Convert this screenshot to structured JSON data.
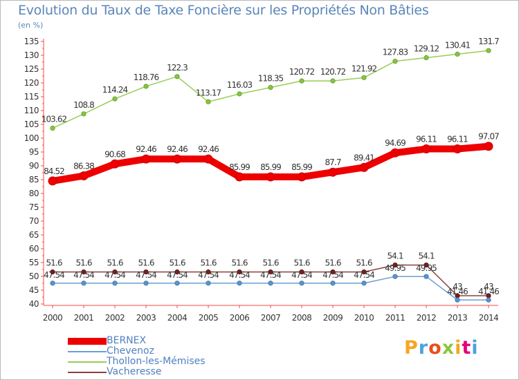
{
  "chart_data": {
    "type": "line",
    "title": "Evolution du Taux de Taxe Foncière sur les Propriétés Non Bâties",
    "subtitle": "(en %)",
    "x": [
      "2000",
      "2001",
      "2002",
      "2003",
      "2004",
      "2005",
      "2006",
      "2007",
      "2008",
      "2009",
      "2010",
      "2011",
      "2012",
      "2013",
      "2014"
    ],
    "ylim": [
      40,
      135
    ],
    "yticks": [
      40,
      45,
      50,
      55,
      60,
      65,
      70,
      75,
      80,
      85,
      90,
      95,
      100,
      105,
      110,
      115,
      120,
      125,
      130,
      135
    ],
    "grid": false,
    "legend_position": "bottom-left",
    "series": [
      {
        "name": "BERNEX",
        "color": "#ee0000",
        "values": [
          84.52,
          86.38,
          90.68,
          92.46,
          92.46,
          92.46,
          85.99,
          85.99,
          85.99,
          87.7,
          89.41,
          94.69,
          96.11,
          96.11,
          97.07
        ],
        "labels": [
          "84.52",
          "86.38",
          "90.68",
          "92.46",
          "92.46",
          "92.46",
          "85.99",
          "85.99",
          "85.99",
          "87.7",
          "89.41",
          "94.69",
          "96.11",
          "96.11",
          "97.07"
        ]
      },
      {
        "name": "Chevenoz",
        "color": "#6a9fd0",
        "values": [
          47.54,
          47.54,
          47.54,
          47.54,
          47.54,
          47.54,
          47.54,
          47.54,
          47.54,
          47.54,
          47.54,
          49.95,
          49.95,
          41.46,
          41.46
        ],
        "labels": [
          "47.54",
          "47.54",
          "47.54",
          "47.54",
          "47.54",
          "47.54",
          "47.54",
          "47.54",
          "47.54",
          "47.54",
          "47.54",
          "49.95",
          "49.95",
          "41.46",
          "41.46"
        ]
      },
      {
        "name": "Thollon-les-Mémises",
        "color": "#99cc55",
        "values": [
          103.62,
          108.8,
          114.24,
          118.76,
          122.3,
          113.17,
          116.03,
          118.35,
          120.72,
          120.72,
          121.92,
          127.83,
          129.12,
          130.41,
          131.7
        ],
        "labels": [
          "103.62",
          "108.8",
          "114.24",
          "118.76",
          "122.3",
          "113.17",
          "116.03",
          "118.35",
          "120.72",
          "120.72",
          "121.92",
          "127.83",
          "129.12",
          "130.41",
          "131.7"
        ]
      },
      {
        "name": "Vacheresse",
        "color": "#8a4040",
        "values": [
          51.6,
          51.6,
          51.6,
          51.6,
          51.6,
          51.6,
          51.6,
          51.6,
          51.6,
          51.6,
          51.6,
          54.1,
          54.1,
          43,
          43
        ],
        "labels": [
          "51.6",
          "51.6",
          "51.6",
          "51.6",
          "51.6",
          "51.6",
          "51.6",
          "51.6",
          "51.6",
          "51.6",
          "51.6",
          "54.1",
          "54.1",
          "43",
          "43"
        ]
      }
    ]
  },
  "logo": {
    "text": "Proxiti",
    "colors": [
      "#f5a623",
      "#4aa3df",
      "#e94e1b",
      "#8cc63f",
      "#f5a623",
      "#e2007a",
      "#4aa3df"
    ]
  }
}
